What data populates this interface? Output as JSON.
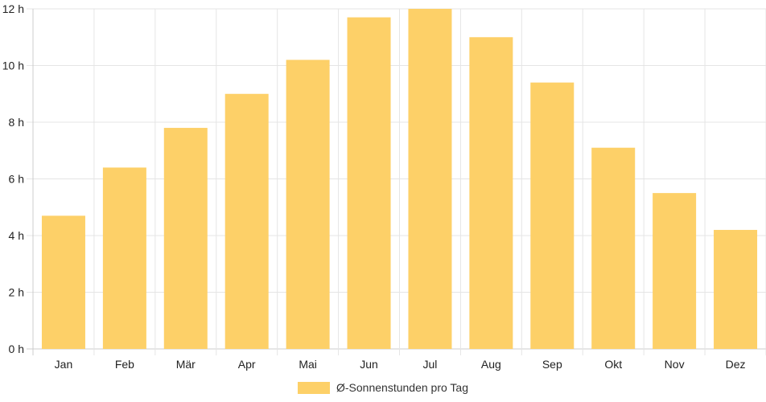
{
  "chart_data": {
    "type": "bar",
    "categories": [
      "Jan",
      "Feb",
      "Mär",
      "Apr",
      "Mai",
      "Jun",
      "Jul",
      "Aug",
      "Sep",
      "Okt",
      "Nov",
      "Dez"
    ],
    "series": [
      {
        "name": "Ø-Sonnenstunden pro Tag",
        "values": [
          4.7,
          6.4,
          7.8,
          9.0,
          10.2,
          11.7,
          12.0,
          11.0,
          9.4,
          7.1,
          5.5,
          4.2
        ],
        "color": "#fdd068"
      }
    ],
    "y_ticks": [
      "0 h",
      "2 h",
      "4 h",
      "6 h",
      "8 h",
      "10 h",
      "12 h"
    ],
    "ylim": [
      0,
      12
    ],
    "y_step": 2,
    "grid": true,
    "grid_color": "#e5e5e5",
    "legend_position": "bottom"
  }
}
